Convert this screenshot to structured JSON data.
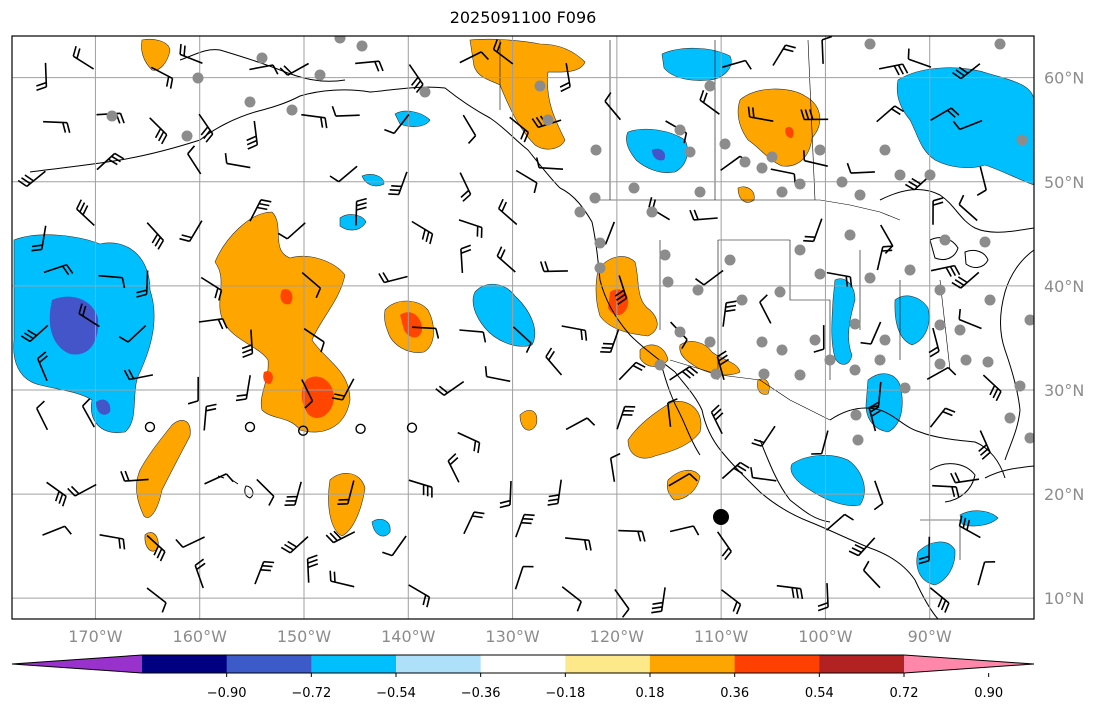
{
  "figure": {
    "title": "2025091100 F096"
  },
  "map": {
    "lat_labels": [
      "60°N",
      "50°N",
      "40°N",
      "30°N",
      "20°N",
      "10°N"
    ],
    "lat_values": [
      60,
      50,
      40,
      30,
      20,
      10
    ],
    "lon_labels": [
      "170°W",
      "160°W",
      "150°W",
      "140°W",
      "130°W",
      "120°W",
      "110°W",
      "100°W",
      "90°W"
    ],
    "lon_values": [
      -170,
      -160,
      -150,
      -140,
      -130,
      -120,
      -110,
      -100,
      -90
    ],
    "extent": {
      "lon_min": -178,
      "lon_max": -80,
      "lat_min": 8,
      "lat_max": 64
    },
    "colors": {
      "neg_strong": "#4355c8",
      "neg": "#00bfff",
      "pos": "#ffa500",
      "pos_strong": "#ff4500",
      "land_outline": "#000000",
      "grid": "#a0a0a0",
      "station": "#8c8c8c"
    }
  },
  "colorbar": {
    "colors": [
      "#9932cc",
      "#000080",
      "#3c5ac8",
      "#00bfff",
      "#aee0fa",
      "#ffffff",
      "#fde98a",
      "#ffa500",
      "#ff4000",
      "#b22222",
      "#ff88aa"
    ],
    "tick_labels": [
      "−0.90",
      "−0.72",
      "−0.54",
      "−0.36",
      "−0.18",
      "0.18",
      "0.36",
      "0.54",
      "0.72",
      "0.90"
    ]
  }
}
